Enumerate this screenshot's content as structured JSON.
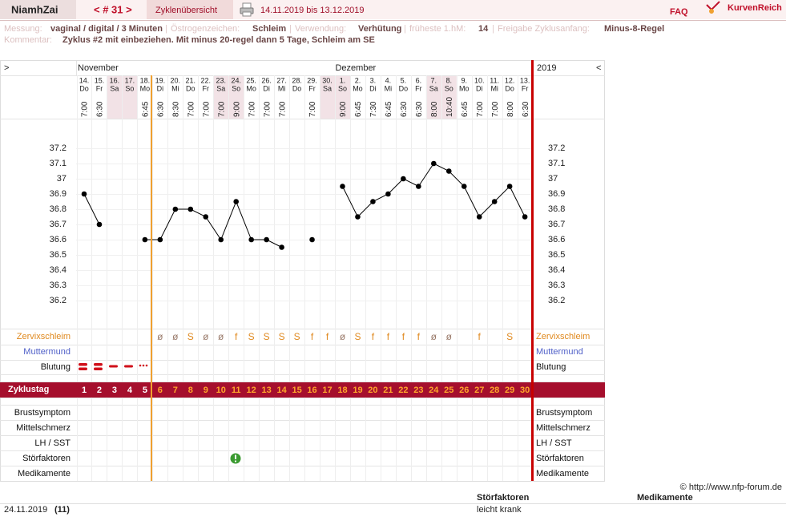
{
  "header": {
    "user": "NiamhZai",
    "cycle_nav": "< # 31 >",
    "tab": "Zyklenübersicht",
    "date_range": "14.11.2019 bis 13.12.2019",
    "faq": "FAQ",
    "brand": "KurvenReich"
  },
  "info": {
    "separator": "|",
    "fields": [
      {
        "label": "Messung:",
        "value": "vaginal / digital / 3 Minuten"
      },
      {
        "label": "Östrogenzeichen:",
        "value": "Schleim"
      },
      {
        "label": "Verwendung:",
        "value": "Verhütung"
      },
      {
        "label": "früheste 1.hM:",
        "value": "14"
      },
      {
        "label": "Freigabe Zyklusanfang:",
        "value": "Minus-8-Regel"
      }
    ],
    "comment_label": "Kommentar:",
    "comment": "Zyklus #2  mit einbeziehen. Mit minus 20-regel dann 5 Tage,  Schleim am SE"
  },
  "chart_data": {
    "type": "line",
    "nav_left": ">",
    "nav_right": "<",
    "months": [
      "November",
      "Dezember"
    ],
    "year": "2019",
    "categories": [
      "14.",
      "15.",
      "16.",
      "17.",
      "18.",
      "19.",
      "20.",
      "21.",
      "22.",
      "23.",
      "24.",
      "25.",
      "26.",
      "27.",
      "28.",
      "29.",
      "30.",
      "1.",
      "2.",
      "3.",
      "4.",
      "5.",
      "6.",
      "7.",
      "8.",
      "9.",
      "10.",
      "11.",
      "12.",
      "13."
    ],
    "weekdays": [
      "Do",
      "Fr",
      "Sa",
      "So",
      "Mo",
      "Di",
      "Mi",
      "Do",
      "Fr",
      "Sa",
      "So",
      "Mo",
      "Di",
      "Mi",
      "Do",
      "Fr",
      "Sa",
      "So",
      "Mo",
      "Di",
      "Mi",
      "Do",
      "Fr",
      "Sa",
      "So",
      "Mo",
      "Di",
      "Mi",
      "Do",
      "Fr"
    ],
    "times": [
      "7:00",
      "6:30",
      null,
      null,
      "6:45",
      "6:30",
      "8:30",
      "7:00",
      "7:00",
      "7:00",
      "9:00",
      "7:00",
      "7:00",
      "7:00",
      null,
      "7:00",
      null,
      "9:00",
      "6:45",
      "7:30",
      "6:45",
      "6:30",
      "6:30",
      "8:00",
      "10:40",
      "6:45",
      "7:00",
      "7:00",
      "8:00",
      "6:30"
    ],
    "values": [
      36.9,
      36.7,
      null,
      null,
      36.6,
      36.6,
      36.8,
      36.8,
      36.75,
      36.6,
      36.85,
      36.6,
      36.6,
      36.55,
      null,
      36.6,
      null,
      36.95,
      36.75,
      36.85,
      36.9,
      37.0,
      36.95,
      37.1,
      37.05,
      36.95,
      36.75,
      36.85,
      36.95,
      36.75
    ],
    "color": "#000000",
    "ylim": [
      36.2,
      37.2
    ],
    "yticks": [
      37.2,
      37.1,
      37,
      36.9,
      36.8,
      36.7,
      36.6,
      36.5,
      36.4,
      36.3,
      36.2
    ],
    "grid": true,
    "cervical_mucus": [
      null,
      null,
      null,
      null,
      null,
      "ø",
      "ø",
      "S",
      "ø",
      "ø",
      "f",
      "S",
      "S",
      "S",
      "S",
      "f",
      "f",
      "ø",
      "S",
      "f",
      "f",
      "f",
      "f",
      "ø",
      "ø",
      null,
      "f",
      null,
      "S",
      null
    ],
    "row_labels": [
      "Zervixschleim",
      "Muttermund",
      "Blutung",
      "Zyklustag",
      "Brustsymptom",
      "Mittelschmerz",
      "LH / SST",
      "Störfaktoren",
      "Medikamente"
    ],
    "cycle_days": [
      1,
      2,
      3,
      4,
      5,
      6,
      7,
      8,
      9,
      10,
      11,
      12,
      13,
      14,
      15,
      16,
      17,
      18,
      19,
      20,
      21,
      22,
      23,
      24,
      25,
      26,
      27,
      28,
      29,
      30
    ]
  },
  "footer": {
    "copyright": "© http://www.nfp-forum.de",
    "columns": [
      "Störfaktoren",
      "Medikamente"
    ],
    "entries": [
      {
        "date": "24.11.2019",
        "day": "(11)",
        "disturbance": "leicht krank"
      }
    ]
  }
}
